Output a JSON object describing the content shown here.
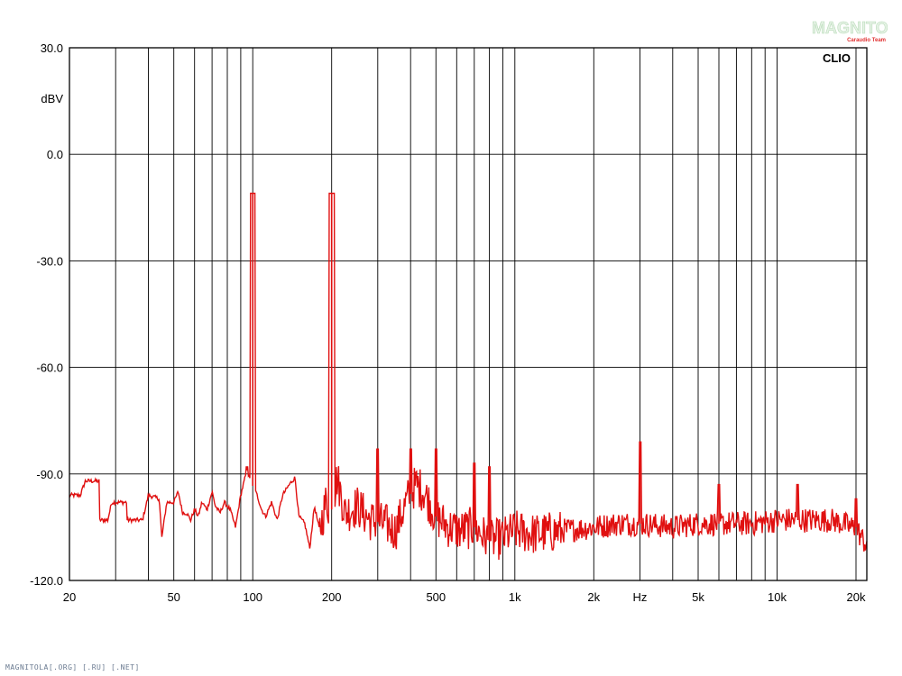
{
  "chart_data": {
    "type": "line",
    "title": "",
    "xlabel": "Hz",
    "ylabel": "dBV",
    "x_scale": "log",
    "xlim": [
      20,
      22000
    ],
    "ylim": [
      -120,
      30
    ],
    "y_ticks": [
      30,
      0,
      -30,
      -60,
      -90,
      -120
    ],
    "y_tick_labels": [
      "30.0",
      "0.0",
      "-30.0",
      "-60.0",
      "-90.0",
      "-120.0"
    ],
    "x_tick_labels": [
      {
        "value": 20,
        "label": "20"
      },
      {
        "value": 50,
        "label": "50"
      },
      {
        "value": 100,
        "label": "100"
      },
      {
        "value": 200,
        "label": "200"
      },
      {
        "value": 500,
        "label": "500"
      },
      {
        "value": 1000,
        "label": "1k"
      },
      {
        "value": 2000,
        "label": "2k"
      },
      {
        "value": 5000,
        "label": "5k"
      },
      {
        "value": 10000,
        "label": "10k"
      },
      {
        "value": 20000,
        "label": "20k"
      }
    ],
    "x_axis_unit_label": {
      "value": 3000,
      "label": "Hz"
    },
    "grid": true,
    "series": [
      {
        "color": "#e01010",
        "noise_floor": [
          [
            20,
            -96
          ],
          [
            22,
            -96
          ],
          [
            23,
            -92
          ],
          [
            26,
            -92
          ],
          [
            26,
            -103
          ],
          [
            28,
            -103
          ],
          [
            29,
            -98
          ],
          [
            33,
            -98
          ],
          [
            33,
            -103
          ],
          [
            38,
            -103
          ],
          [
            40,
            -96
          ],
          [
            44,
            -97
          ],
          [
            45,
            -108
          ],
          [
            47,
            -98
          ],
          [
            50,
            -98
          ],
          [
            52,
            -95
          ],
          [
            54,
            -101
          ],
          [
            56,
            -101
          ],
          [
            58,
            -103
          ],
          [
            60,
            -100
          ],
          [
            62,
            -102
          ],
          [
            64,
            -98
          ],
          [
            67,
            -100
          ],
          [
            70,
            -95
          ],
          [
            72,
            -99
          ],
          [
            75,
            -101
          ],
          [
            78,
            -98
          ],
          [
            82,
            -100
          ],
          [
            86,
            -105
          ],
          [
            90,
            -96
          ],
          [
            95,
            -89
          ],
          [
            98,
            -92
          ],
          [
            104,
            -96
          ],
          [
            108,
            -100
          ],
          [
            112,
            -102
          ],
          [
            118,
            -98
          ],
          [
            124,
            -103
          ],
          [
            130,
            -96
          ],
          [
            138,
            -93
          ],
          [
            145,
            -91
          ],
          [
            150,
            -102
          ],
          [
            158,
            -104
          ],
          [
            165,
            -111
          ],
          [
            172,
            -99
          ],
          [
            180,
            -106
          ],
          [
            190,
            -98
          ],
          [
            200,
            -100
          ],
          [
            210,
            -91
          ],
          [
            225,
            -101
          ],
          [
            250,
            -99
          ],
          [
            280,
            -103
          ],
          [
            320,
            -104
          ],
          [
            350,
            -106
          ],
          [
            390,
            -97
          ],
          [
            420,
            -93
          ],
          [
            450,
            -95
          ],
          [
            500,
            -102
          ],
          [
            560,
            -105
          ],
          [
            620,
            -106
          ],
          [
            700,
            -105
          ],
          [
            800,
            -109
          ],
          [
            900,
            -108
          ],
          [
            1000,
            -106
          ],
          [
            1200,
            -107
          ],
          [
            1500,
            -106
          ],
          [
            2000,
            -105
          ],
          [
            2500,
            -104
          ],
          [
            3000,
            -104
          ],
          [
            4000,
            -105
          ],
          [
            5000,
            -104
          ],
          [
            6000,
            -104
          ],
          [
            8000,
            -104
          ],
          [
            10000,
            -103
          ],
          [
            12000,
            -103
          ],
          [
            14000,
            -103
          ],
          [
            16000,
            -103
          ],
          [
            18000,
            -104
          ],
          [
            19000,
            -105
          ],
          [
            20000,
            -105
          ],
          [
            21000,
            -108
          ],
          [
            22000,
            -110
          ]
        ],
        "peaks": [
          [
            95,
            -88
          ],
          [
            100,
            -11
          ],
          [
            200,
            -11
          ],
          [
            300,
            -83
          ],
          [
            400,
            -83
          ],
          [
            500,
            -83
          ],
          [
            700,
            -87
          ],
          [
            800,
            -88
          ],
          [
            3000,
            -81
          ],
          [
            6000,
            -93
          ],
          [
            12000,
            -93
          ],
          [
            20000,
            -97
          ]
        ]
      }
    ]
  },
  "brand_label": "CLIO",
  "watermark": {
    "name": "MAGNITOLA",
    "sub": "Caraudio Team"
  },
  "footer_text": "MAGNITOLA[.ORG] [.RU] [.NET]",
  "colors": {
    "trace": "#e01010",
    "grid": "#000000",
    "background": "#ffffff"
  }
}
